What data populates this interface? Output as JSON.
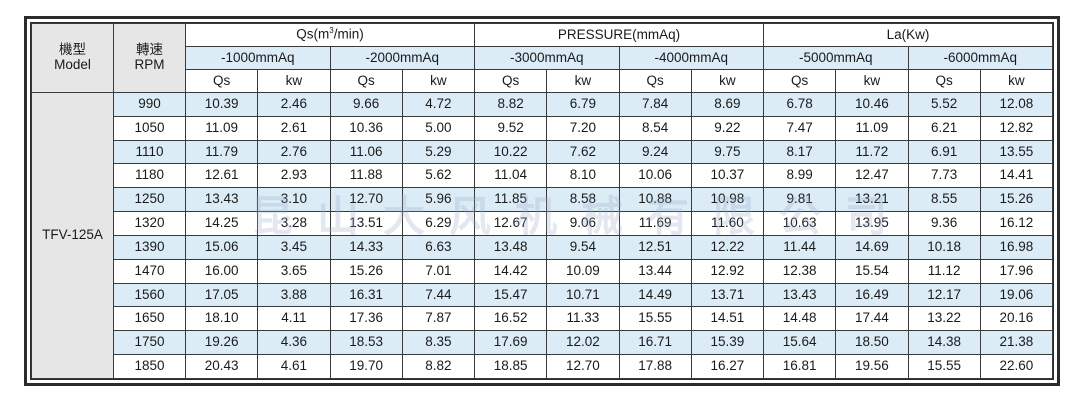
{
  "header": {
    "model_cn": "機型",
    "model_en": "Model",
    "rpm_cn": "轉速",
    "rpm_en": "RPM",
    "qs_label": "Qs(m",
    "qs_sup": "3",
    "qs_tail": "/min)",
    "pressure_label": "PRESSURE(mmAq)",
    "la_label": "La(Kw)",
    "pressures": [
      "-1000mmAq",
      "-2000mmAq",
      "-3000mmAq",
      "-4000mmAq",
      "-5000mmAq",
      "-6000mmAq"
    ],
    "sub_qs": "Qs",
    "sub_kw": "kw"
  },
  "model": "TFV-125A",
  "watermark": "昆山大风机械有限公司",
  "rows": [
    {
      "rpm": "990",
      "v": [
        "10.39",
        "2.46",
        "9.66",
        "4.72",
        "8.82",
        "6.79",
        "7.84",
        "8.69",
        "6.78",
        "10.46",
        "5.52",
        "12.08"
      ]
    },
    {
      "rpm": "1050",
      "v": [
        "11.09",
        "2.61",
        "10.36",
        "5.00",
        "9.52",
        "7.20",
        "8.54",
        "9.22",
        "7.47",
        "11.09",
        "6.21",
        "12.82"
      ]
    },
    {
      "rpm": "1110",
      "v": [
        "11.79",
        "2.76",
        "11.06",
        "5.29",
        "10.22",
        "7.62",
        "9.24",
        "9.75",
        "8.17",
        "11.72",
        "6.91",
        "13.55"
      ]
    },
    {
      "rpm": "1180",
      "v": [
        "12.61",
        "2.93",
        "11.88",
        "5.62",
        "11.04",
        "8.10",
        "10.06",
        "10.37",
        "8.99",
        "12.47",
        "7.73",
        "14.41"
      ]
    },
    {
      "rpm": "1250",
      "v": [
        "13.43",
        "3.10",
        "12.70",
        "5.96",
        "11.85",
        "8.58",
        "10.88",
        "10.98",
        "9.81",
        "13.21",
        "8.55",
        "15.26"
      ]
    },
    {
      "rpm": "1320",
      "v": [
        "14.25",
        "3.28",
        "13.51",
        "6.29",
        "12.67",
        "9.06",
        "11.69",
        "11.60",
        "10.63",
        "13.95",
        "9.36",
        "16.12"
      ]
    },
    {
      "rpm": "1390",
      "v": [
        "15.06",
        "3.45",
        "14.33",
        "6.63",
        "13.48",
        "9.54",
        "12.51",
        "12.22",
        "11.44",
        "14.69",
        "10.18",
        "16.98"
      ]
    },
    {
      "rpm": "1470",
      "v": [
        "16.00",
        "3.65",
        "15.26",
        "7.01",
        "14.42",
        "10.09",
        "13.44",
        "12.92",
        "12.38",
        "15.54",
        "11.12",
        "17.96"
      ]
    },
    {
      "rpm": "1560",
      "v": [
        "17.05",
        "3.88",
        "16.31",
        "7.44",
        "15.47",
        "10.71",
        "14.49",
        "13.71",
        "13.43",
        "16.49",
        "12.17",
        "19.06"
      ]
    },
    {
      "rpm": "1650",
      "v": [
        "18.10",
        "4.11",
        "17.36",
        "7.87",
        "16.52",
        "11.33",
        "15.55",
        "14.51",
        "14.48",
        "17.44",
        "13.22",
        "20.16"
      ]
    },
    {
      "rpm": "1750",
      "v": [
        "19.26",
        "4.36",
        "18.53",
        "8.35",
        "17.69",
        "12.02",
        "16.71",
        "15.39",
        "15.64",
        "18.50",
        "14.38",
        "21.38"
      ]
    },
    {
      "rpm": "1850",
      "v": [
        "20.43",
        "4.61",
        "19.70",
        "8.82",
        "18.85",
        "12.70",
        "17.88",
        "16.27",
        "16.81",
        "19.56",
        "15.55",
        "22.60"
      ]
    }
  ],
  "colors": {
    "blue_stripe": "#dcecf7",
    "header_gray": "#e6e6e6",
    "border": "#2b2b2b"
  }
}
